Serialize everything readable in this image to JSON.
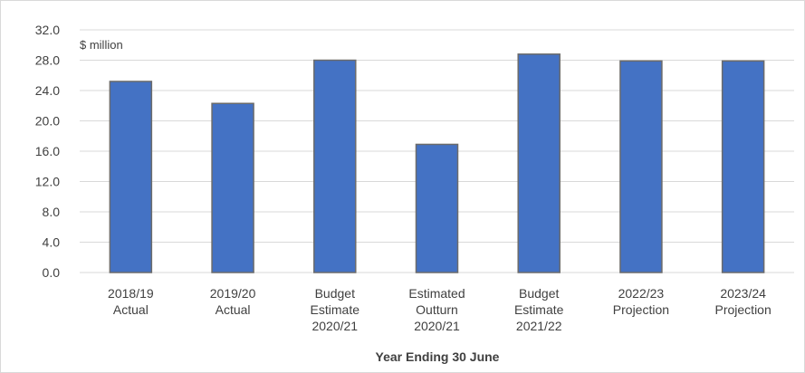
{
  "chart_data": {
    "type": "bar",
    "unit_label": "$ million",
    "xlabel": "Year Ending 30 June",
    "ylabel": "",
    "ylim": [
      0,
      32
    ],
    "yticks": [
      "0.0",
      "4.0",
      "8.0",
      "12.0",
      "16.0",
      "20.0",
      "24.0",
      "28.0",
      "32.0"
    ],
    "grid": true,
    "legend": "none",
    "bar_color": "#4472C4",
    "categories": [
      [
        "2018/19",
        "Actual"
      ],
      [
        "2019/20",
        "Actual"
      ],
      [
        "Budget",
        "Estimate",
        "2020/21"
      ],
      [
        "Estimated",
        "Outturn",
        "2020/21"
      ],
      [
        "Budget",
        "Estimate",
        "2021/22"
      ],
      [
        "2022/23",
        "Projection"
      ],
      [
        "2023/24",
        "Projection"
      ]
    ],
    "values": [
      25.2,
      22.3,
      28.0,
      16.9,
      28.8,
      27.9,
      27.9
    ]
  }
}
